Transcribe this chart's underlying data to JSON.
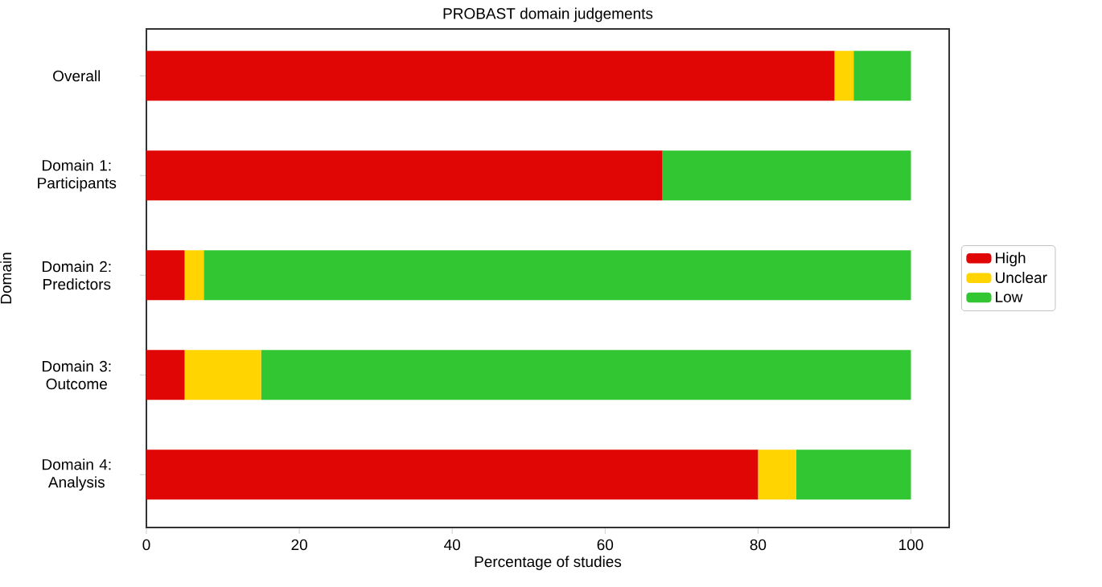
{
  "chart_data": {
    "type": "bar",
    "orientation": "horizontal",
    "stacked": true,
    "title": "PROBAST domain judgements",
    "xlabel": "Percentage of studies",
    "ylabel": "Domain",
    "categories": [
      "Overall",
      "Domain 1: Participants",
      "Domain 2: Predictors",
      "Domain 3: Outcome",
      "Domain 4: Analysis"
    ],
    "series": [
      {
        "name": "High",
        "color": "#e00606",
        "values": [
          90,
          67.5,
          5,
          5,
          80
        ]
      },
      {
        "name": "Unclear",
        "color": "#ffd400",
        "values": [
          2.5,
          0,
          2.5,
          10,
          5
        ]
      },
      {
        "name": "Low",
        "color": "#33c633",
        "values": [
          7.5,
          32.5,
          92.5,
          85,
          15
        ]
      }
    ],
    "xlim": [
      0,
      105
    ],
    "xticks": [
      0,
      20,
      40,
      60,
      80,
      100
    ],
    "legend": "right",
    "grid": false
  }
}
